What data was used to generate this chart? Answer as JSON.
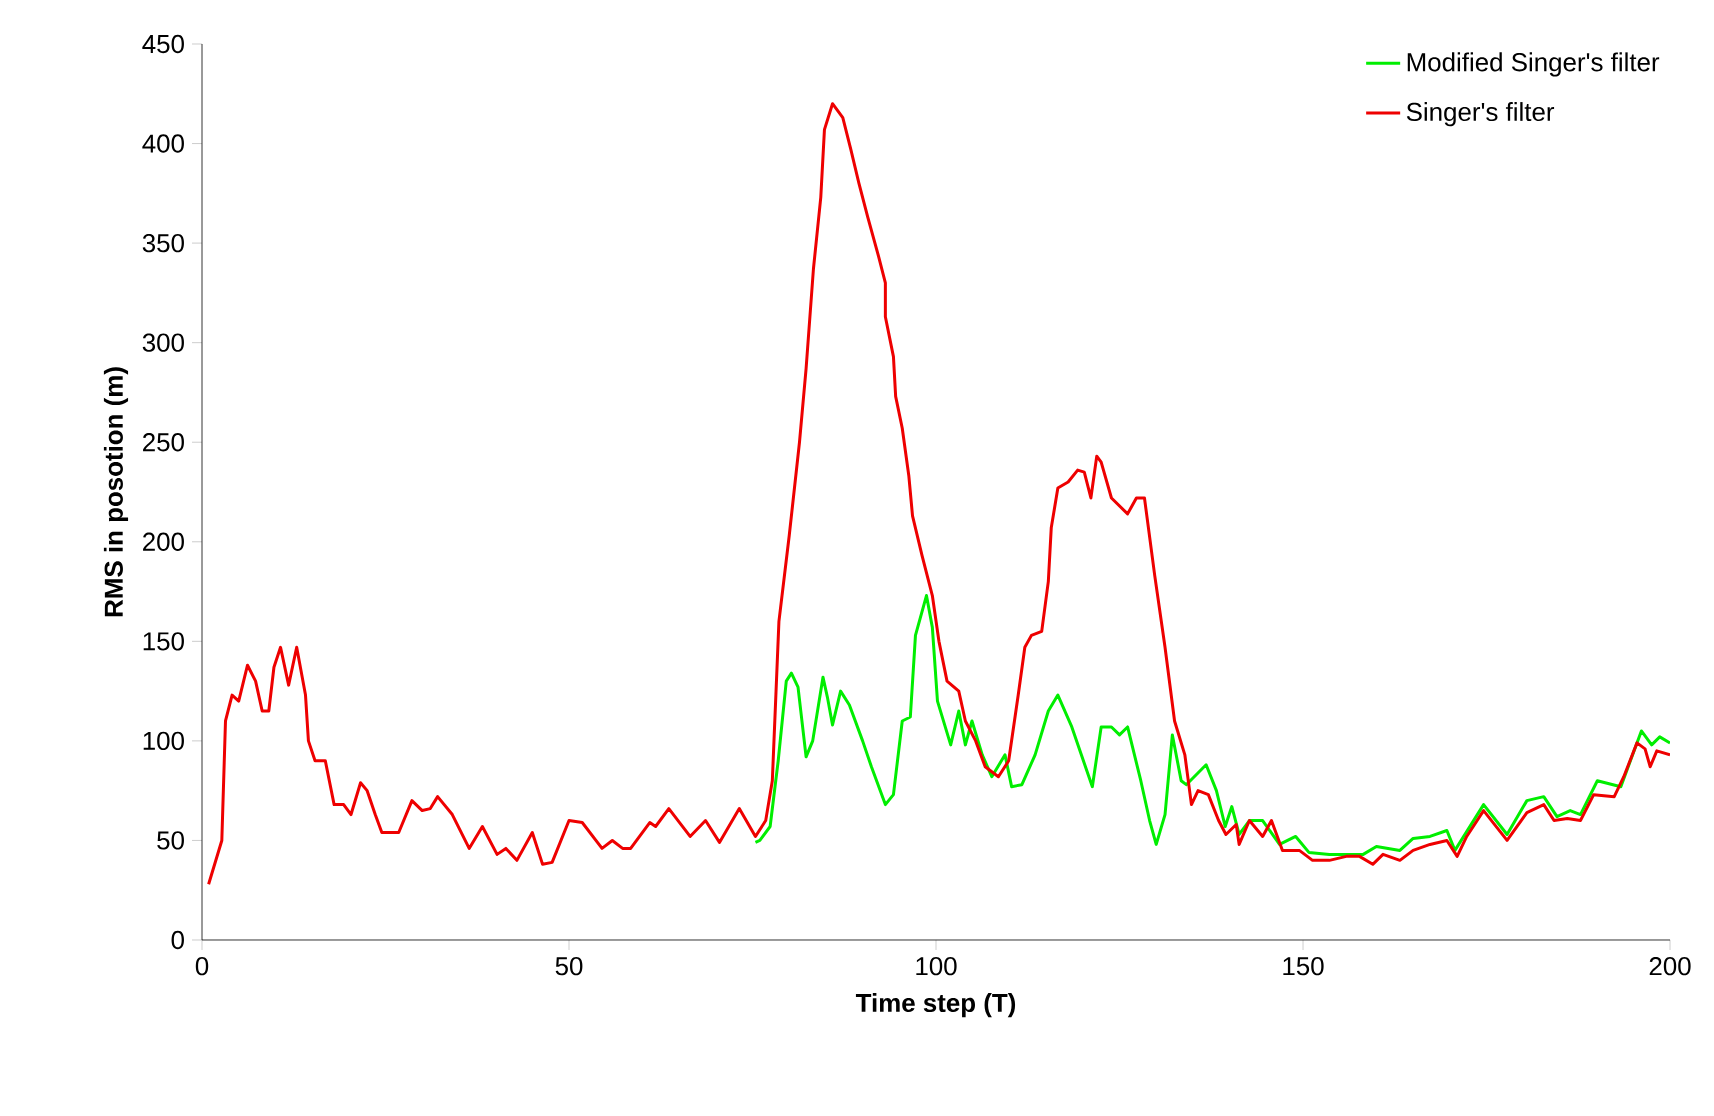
{
  "chart_data": {
    "type": "line",
    "xlabel": "Time step (T)",
    "ylabel": "RMS in posotion (m)",
    "xlim": [
      0,
      200
    ],
    "ylim": [
      0,
      450
    ],
    "xticks": [
      0,
      50,
      100,
      150,
      200
    ],
    "yticks": [
      0,
      50,
      100,
      150,
      200,
      250,
      300,
      350,
      400,
      450
    ],
    "grid": false,
    "legend": "top right",
    "marker": "none",
    "line_style": "solid",
    "series": [
      {
        "name": "Modified Singer's filter",
        "color": "#00ee00",
        "x": [
          75.4,
          76,
          77.4,
          78.5,
          79.6,
          80.3,
          81.2,
          82.3,
          83.2,
          84.6,
          85.2,
          85.9,
          87,
          88.2,
          90,
          91.2,
          93.1,
          94.2,
          95.4,
          96.5,
          97.2,
          98.7,
          99.5,
          100.2,
          102,
          103.1,
          104,
          104.9,
          106.3,
          107.6,
          109.4,
          110.3,
          111.7,
          113.5,
          115.3,
          116.6,
          118.5,
          119.8,
          121.3,
          122.5,
          123.9,
          125,
          126.1,
          127.9,
          129.1,
          130,
          131.2,
          132.2,
          133.4,
          134.1,
          136.8,
          138.2,
          139.4,
          140.3,
          141.3,
          142.7,
          144.5,
          146.8,
          149,
          150.8,
          153.6,
          158.2,
          160,
          163.2,
          165,
          167.3,
          169.6,
          170.7,
          174.6,
          177.8,
          180.5,
          182.8,
          184.6,
          186.4,
          187.8,
          190.1,
          193.3,
          196.1,
          197.5,
          198.6,
          200
        ],
        "values": [
          49,
          50,
          57,
          90,
          130,
          134,
          127,
          92,
          100,
          132,
          122,
          108,
          125,
          118,
          100,
          87,
          68,
          73,
          110,
          112,
          153,
          173,
          157,
          120,
          98,
          115,
          98,
          110,
          93,
          82,
          93,
          77,
          78,
          93,
          115,
          123,
          107,
          93,
          77,
          107,
          107,
          103,
          107,
          80,
          60,
          48,
          63,
          103,
          80,
          78,
          88,
          75,
          57,
          67,
          53,
          60,
          60,
          48,
          52,
          44,
          43,
          43,
          47,
          45,
          51,
          52,
          55,
          45,
          68,
          53,
          70,
          72,
          62,
          65,
          63,
          80,
          77,
          105,
          98,
          102,
          99
        ]
      },
      {
        "name": "Singer's filter",
        "color": "#ee0000",
        "x": [
          0.9,
          2.7,
          3.2,
          4.1,
          5,
          6.2,
          7.3,
          8.2,
          9.1,
          9.8,
          10.7,
          11.8,
          12.9,
          14.1,
          14.5,
          15.4,
          16.8,
          18,
          19.3,
          20.3,
          21.6,
          22.5,
          23.6,
          24.5,
          26.8,
          28.6,
          30,
          31.1,
          32.1,
          34.1,
          36.4,
          38.2,
          40.2,
          41.4,
          42.9,
          45,
          46.4,
          47.7,
          50,
          51.8,
          54.5,
          55.9,
          57.3,
          58.4,
          61,
          61.8,
          63.6,
          66.5,
          68.6,
          70.5,
          73.2,
          75.4,
          76.8,
          77.7,
          78.6,
          80,
          81.4,
          82.3,
          83.3,
          84.3,
          84.8,
          85.9,
          87.3,
          88.4,
          89.5,
          90.7,
          92.2,
          93.1,
          93.1,
          94.2,
          94.5,
          95.4,
          96.3,
          96.8,
          98.1,
          99.5,
          100.4,
          101.5,
          103.1,
          104,
          105.4,
          106.7,
          108.5,
          109.9,
          111.2,
          112.1,
          113,
          114.4,
          115.3,
          115.7,
          116.6,
          118,
          119.3,
          120.2,
          121.1,
          121.9,
          122.5,
          123.9,
          126.1,
          127.3,
          128.4,
          129.8,
          131.2,
          132.5,
          133.9,
          134.8,
          135.7,
          137.1,
          138.5,
          139.5,
          140.9,
          141.3,
          142.7,
          144.5,
          145.7,
          147.2,
          149.5,
          151.3,
          153.6,
          155.9,
          157.7,
          159.5,
          160.9,
          163.2,
          165,
          167.3,
          169.6,
          171,
          172.3,
          174.6,
          177.8,
          180.5,
          182.8,
          184.2,
          186,
          187.8,
          189.6,
          192.4,
          193.7,
          195.5,
          196.6,
          197.3,
          198.2,
          200
        ],
        "values": [
          28,
          50,
          110,
          123,
          120,
          138,
          130,
          115,
          115,
          137,
          147,
          128,
          147,
          123,
          100,
          90,
          90,
          68,
          68,
          63,
          79,
          75,
          63,
          54,
          54,
          70,
          65,
          66,
          72,
          63,
          46,
          57,
          43,
          46,
          40,
          54,
          38,
          39,
          60,
          59,
          46,
          50,
          46,
          46,
          59,
          57,
          66,
          52,
          60,
          49,
          66,
          52,
          60,
          80,
          160,
          203,
          250,
          287,
          337,
          373,
          407,
          420,
          413,
          397,
          380,
          363,
          343,
          330,
          313,
          293,
          273,
          257,
          233,
          213,
          193,
          173,
          150,
          130,
          125,
          110,
          100,
          87,
          82,
          90,
          123,
          147,
          153,
          155,
          180,
          207,
          227,
          230,
          236,
          235,
          222,
          243,
          240,
          222,
          214,
          222,
          222,
          183,
          147,
          110,
          93,
          68,
          75,
          73,
          60,
          53,
          58,
          48,
          60,
          52,
          60,
          45,
          45,
          40,
          40,
          42,
          42,
          38,
          43,
          40,
          45,
          48,
          50,
          42,
          52,
          65,
          50,
          64,
          68,
          60,
          61,
          60,
          73,
          72,
          82,
          99,
          96,
          87,
          95,
          93
        ]
      }
    ]
  }
}
